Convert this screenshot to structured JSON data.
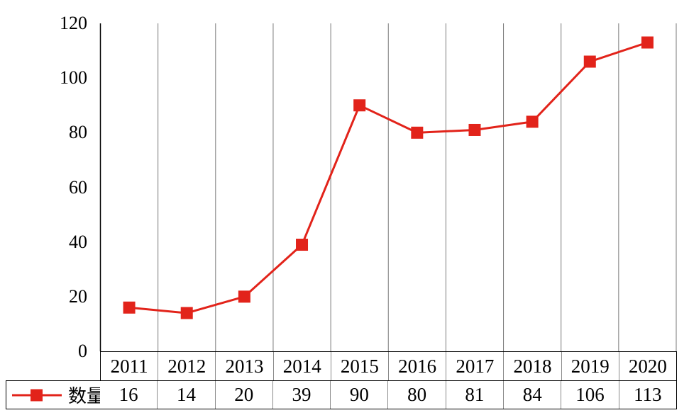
{
  "chart_data": {
    "type": "line",
    "title": "",
    "categories": [
      "2011",
      "2012",
      "2013",
      "2014",
      "2015",
      "2016",
      "2017",
      "2018",
      "2019",
      "2020"
    ],
    "series": [
      {
        "name": "数量",
        "values": [
          16,
          14,
          20,
          39,
          90,
          80,
          81,
          84,
          106,
          113
        ],
        "color": "#e2231a",
        "marker": "square"
      }
    ],
    "ylim": [
      0,
      120
    ],
    "yticks": [
      0,
      20,
      40,
      60,
      80,
      100,
      120
    ],
    "xlabel": "",
    "ylabel": "",
    "grid": "vertical-category-separators",
    "legend_position": "bottom-left-of-data-table",
    "data_table_shown": true
  },
  "colors": {
    "series": "#e2231a",
    "axis_line": "#000000",
    "gridline": "#7a7a7a",
    "table_border_outer": "#000000",
    "table_border_inner": "#8a8a8a",
    "text": "#000000",
    "background": "#ffffff"
  }
}
